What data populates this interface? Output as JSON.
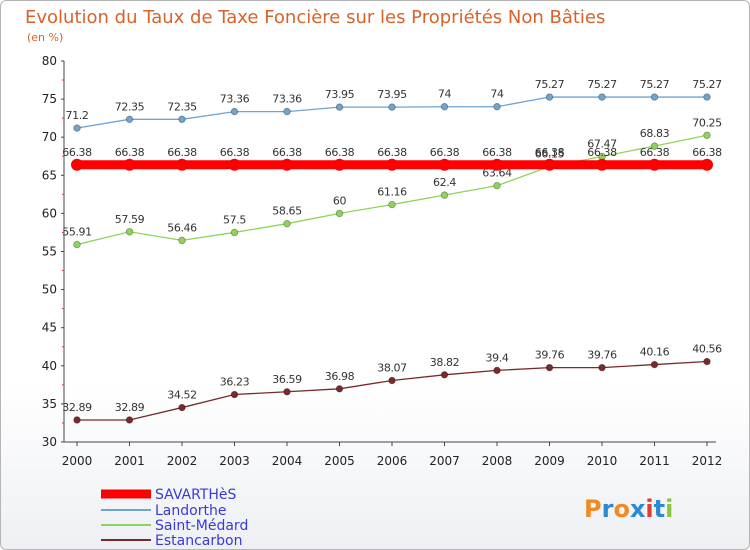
{
  "chart_data": {
    "type": "line",
    "title": "Evolution du Taux de Taxe Foncière sur les Propriétés Non Bâties",
    "subtitle": "(en %)",
    "x": [
      "2000",
      "2001",
      "2002",
      "2003",
      "2004",
      "2005",
      "2006",
      "2007",
      "2008",
      "2009",
      "2010",
      "2011",
      "2012"
    ],
    "ylim": [
      30,
      80
    ],
    "yticks": [
      30,
      35,
      40,
      45,
      50,
      55,
      60,
      65,
      70,
      75,
      80
    ],
    "grid": false,
    "legend_position": "bottom-left",
    "series": [
      {
        "name": "SAVARTHèS",
        "color": "#ff0000",
        "values": [
          66.38,
          66.38,
          66.38,
          66.38,
          66.38,
          66.38,
          66.38,
          66.38,
          66.38,
          66.38,
          66.38,
          66.38,
          66.38
        ],
        "labels": [
          "66.38",
          "66.38",
          "66.38",
          "66.38",
          "66.38",
          "66.38",
          "66.38",
          "66.38",
          "66.38",
          "66.38",
          "66.38",
          "66.38",
          "66.38"
        ]
      },
      {
        "name": "Landorthe",
        "color": "#6fa3d0",
        "values": [
          71.2,
          72.35,
          72.35,
          73.36,
          73.36,
          73.95,
          73.95,
          74,
          74,
          75.27,
          75.27,
          75.27,
          75.27
        ],
        "labels": [
          "71.2",
          "72.35",
          "72.35",
          "73.36",
          "73.36",
          "73.95",
          "73.95",
          "74",
          "74",
          "75.27",
          "75.27",
          "75.27",
          "75.27"
        ]
      },
      {
        "name": "Saint-Médard",
        "color": "#8fd45a",
        "values": [
          55.91,
          57.59,
          56.46,
          57.5,
          58.65,
          60,
          61.16,
          62.4,
          63.64,
          66.15,
          67.47,
          68.83,
          70.25
        ],
        "labels": [
          "55.91",
          "57.59",
          "56.46",
          "57.5",
          "58.65",
          "60",
          "61.16",
          "62.4",
          "63.64",
          "66.15",
          "67.47",
          "68.83",
          "70.25"
        ]
      },
      {
        "name": "Estancarbon",
        "color": "#7a2a2a",
        "values": [
          32.89,
          32.89,
          34.52,
          36.23,
          36.59,
          36.98,
          38.07,
          38.82,
          39.4,
          39.76,
          39.76,
          40.16,
          40.56
        ],
        "labels": [
          "32.89",
          "32.89",
          "34.52",
          "36.23",
          "36.59",
          "36.98",
          "38.07",
          "38.82",
          "39.4",
          "39.76",
          "39.76",
          "40.16",
          "40.56"
        ]
      }
    ]
  },
  "logo": {
    "text": "Proxiti",
    "letters": [
      "P",
      "r",
      "o",
      "x",
      "i",
      "t",
      "i"
    ],
    "colors": [
      "#f08a24",
      "#2a8ad4",
      "#f08a24",
      "#2a8ad4",
      "#e03c31",
      "#2a8ad4",
      "#8cc63f"
    ]
  }
}
